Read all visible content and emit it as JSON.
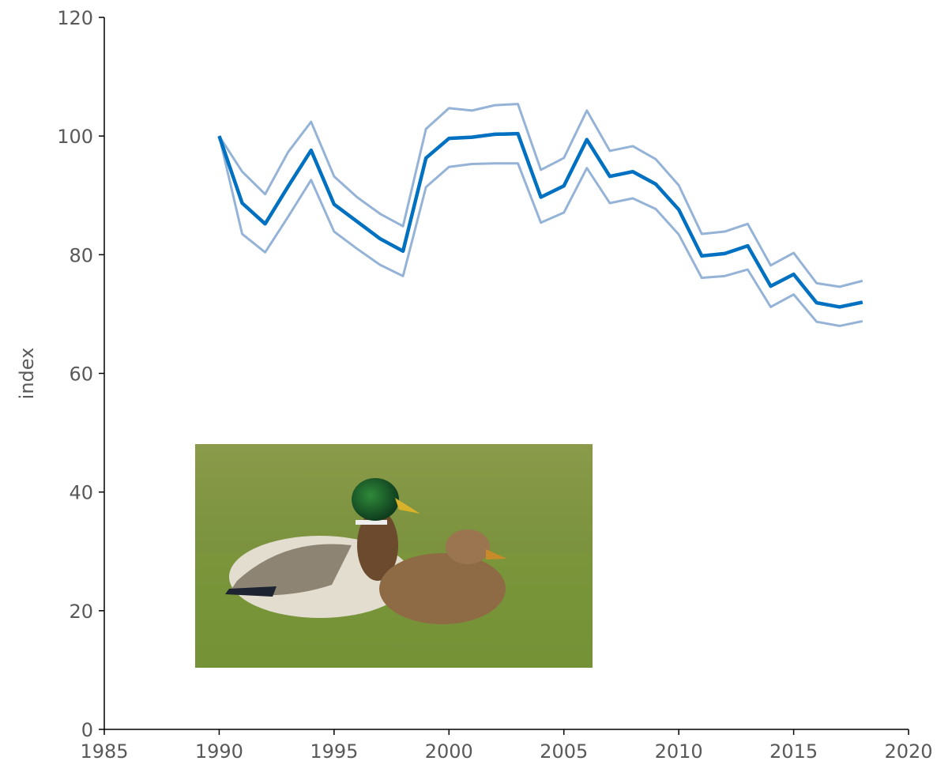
{
  "chart_data": {
    "type": "line",
    "y_label": "index",
    "x": [
      1990,
      1991,
      1992,
      1993,
      1994,
      1995,
      1996,
      1997,
      1998,
      1999,
      2000,
      2001,
      2002,
      2003,
      2004,
      2005,
      2006,
      2007,
      2008,
      2009,
      2010,
      2011,
      2012,
      2013,
      2014,
      2015,
      2016,
      2017,
      2018
    ],
    "series": [
      {
        "color": "#95b3d7",
        "values": [
          100,
          94,
          90.2,
          97.3,
          102.4,
          93.2,
          89.7,
          86.9,
          84.8,
          101.2,
          104.7,
          104.3,
          105.2,
          105.4,
          94.3,
          96.3,
          104.3,
          97.5,
          98.3,
          96.1,
          91.7,
          83.5,
          83.9,
          85.2,
          78.2,
          80.3,
          75.2,
          74.6,
          75.6
        ]
      },
      {
        "color": "#95b3d7",
        "values": [
          100,
          83.5,
          80.4,
          86.4,
          92.6,
          83.9,
          81,
          78.3,
          76.4,
          91.4,
          94.8,
          95.3,
          95.4,
          95.4,
          85.4,
          87.1,
          94.6,
          88.7,
          89.5,
          87.7,
          83.4,
          76.1,
          76.4,
          77.5,
          71.2,
          73.3,
          68.7,
          68,
          68.8
        ]
      },
      {
        "color": "#0070c0",
        "values": [
          100,
          88.7,
          85.2,
          91.5,
          97.6,
          88.5,
          85.6,
          82.7,
          80.6,
          96.3,
          99.6,
          99.8,
          100.3,
          100.4,
          89.7,
          91.6,
          99.4,
          93.2,
          94,
          91.9,
          87.6,
          79.8,
          80.2,
          81.5,
          74.7,
          76.7,
          71.9,
          71.2,
          72
        ]
      }
    ],
    "xlim": [
      1985,
      2020
    ],
    "xticks": [
      1985,
      1990,
      1995,
      2000,
      2005,
      2010,
      2015,
      2020
    ],
    "ylim": [
      0,
      120
    ],
    "yticks": [
      0,
      20,
      40,
      60,
      80,
      100,
      120
    ]
  }
}
